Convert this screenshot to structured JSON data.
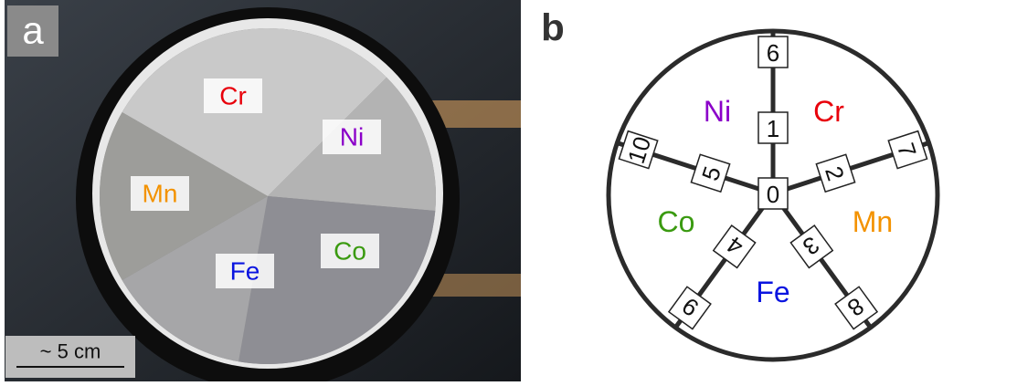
{
  "panel_a": {
    "label": "a",
    "elements": [
      {
        "symbol": "Cr",
        "color": "#e8000b"
      },
      {
        "symbol": "Ni",
        "color": "#8b00c9"
      },
      {
        "symbol": "Mn",
        "color": "#f39200"
      },
      {
        "symbol": "Fe",
        "color": "#0a14e0"
      },
      {
        "symbol": "Co",
        "color": "#3a9a10"
      }
    ],
    "scale_bar": "~ 5 cm"
  },
  "panel_b": {
    "label": "b",
    "elements": [
      {
        "symbol": "Ni",
        "color": "#8b00c9"
      },
      {
        "symbol": "Cr",
        "color": "#e8000b"
      },
      {
        "symbol": "Co",
        "color": "#3a9a10"
      },
      {
        "symbol": "Mn",
        "color": "#f39200"
      },
      {
        "symbol": "Fe",
        "color": "#0a14e0"
      }
    ],
    "nodes": [
      0,
      1,
      2,
      3,
      4,
      5,
      6,
      7,
      8,
      9,
      10
    ]
  }
}
